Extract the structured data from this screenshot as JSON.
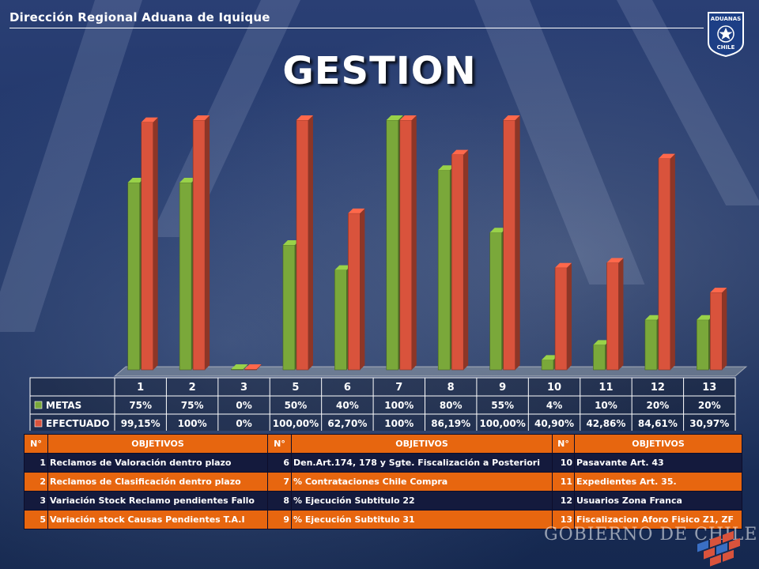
{
  "header": {
    "title": "Dirección Regional Aduana de Iquique"
  },
  "logo": {
    "top": "ADUANAS",
    "bottom": "CHILE"
  },
  "page_title": "GESTION",
  "colors": {
    "metas": "#7aa83a",
    "efectuado": "#d9533c",
    "accent": "#e7660f",
    "dark_row": "#141a3d"
  },
  "chart_data": {
    "type": "bar",
    "categories": [
      "1",
      "2",
      "3",
      "5",
      "6",
      "7",
      "8",
      "9",
      "10",
      "11",
      "12",
      "13"
    ],
    "ylim": [
      0,
      100
    ],
    "series": [
      {
        "name": "METAS",
        "values": [
          75,
          75,
          0,
          50,
          40,
          100,
          80,
          55,
          4,
          10,
          20,
          20
        ],
        "labels": [
          "75%",
          "75%",
          "0%",
          "50%",
          "40%",
          "100%",
          "80%",
          "55%",
          "4%",
          "10%",
          "20%",
          "20%"
        ]
      },
      {
        "name": "EFECTUADO",
        "values": [
          99.15,
          100,
          0,
          100,
          62.7,
          100,
          86.19,
          100,
          40.9,
          42.86,
          84.61,
          30.97
        ],
        "labels": [
          "99,15%",
          "100%",
          "0%",
          "100,00%",
          "62,70%",
          "100%",
          "86,19%",
          "100,00%",
          "40,90%",
          "42,86%",
          "84,61%",
          "30,97%"
        ]
      }
    ]
  },
  "table": {
    "headers": [
      "N°",
      "OBJETIVOS",
      "N°",
      "OBJETIVOS",
      "N°",
      "OBJETIVOS"
    ],
    "rows": [
      [
        "1",
        "Reclamos de Valoración dentro plazo",
        "6",
        "Den.Art.174, 178 y Sgte. Fiscalización a Posteriori",
        "10",
        "Pasavante Art. 43"
      ],
      [
        "2",
        "Reclamos de Clasificación dentro plazo",
        "7",
        "% Contrataciones Chile Compra",
        "11",
        "Expedientes Art. 35."
      ],
      [
        "3",
        "Variación Stock Reclamo pendientes Fallo",
        "8",
        "% Ejecución Subtitulo 22",
        "12",
        "Usuarios Zona Franca"
      ],
      [
        "5",
        "Variación stock Causas Pendientes T.A.I",
        "9",
        "% Ejecución Subtitulo 31",
        "13",
        "Fiscalizacion Aforo Fisico Z1, ZF"
      ]
    ]
  },
  "footer": {
    "gobierno": "GOBIERNO DE CHILE"
  }
}
